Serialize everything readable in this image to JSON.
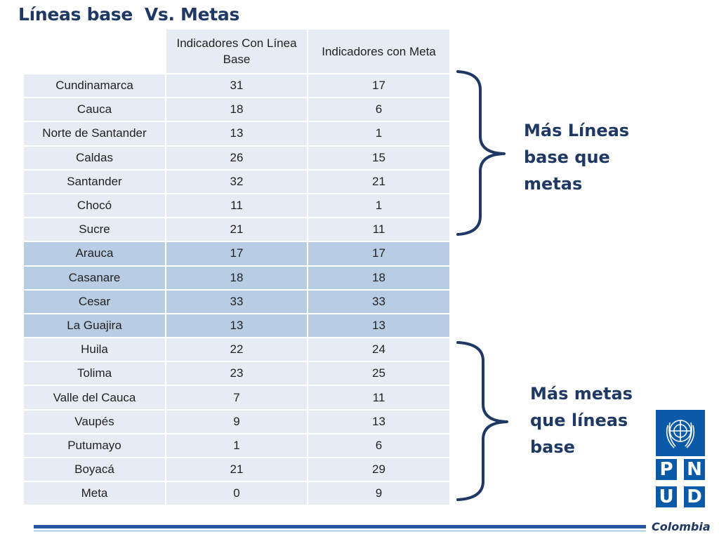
{
  "title": "Líneas base  Vs. Metas",
  "table": {
    "headers": [
      "",
      "Indicadores Con Línea Base",
      "Indicadores con Meta"
    ],
    "rows": [
      {
        "name": "Cundinamarca",
        "base": "31",
        "meta": "17",
        "group": "more_base"
      },
      {
        "name": "Cauca",
        "base": "18",
        "meta": "6",
        "group": "more_base"
      },
      {
        "name": "Norte de Santander",
        "base": "13",
        "meta": "1",
        "group": "more_base"
      },
      {
        "name": "Caldas",
        "base": "26",
        "meta": "15",
        "group": "more_base"
      },
      {
        "name": "Santander",
        "base": "32",
        "meta": "21",
        "group": "more_base"
      },
      {
        "name": "Chocó",
        "base": "11",
        "meta": "1",
        "group": "more_base"
      },
      {
        "name": "Sucre",
        "base": "21",
        "meta": "11",
        "group": "more_base"
      },
      {
        "name": "Arauca",
        "base": "17",
        "meta": "17",
        "group": "equal"
      },
      {
        "name": "Casanare",
        "base": "18",
        "meta": "18",
        "group": "equal"
      },
      {
        "name": "Cesar",
        "base": "33",
        "meta": "33",
        "group": "equal"
      },
      {
        "name": "La Guajira",
        "base": "13",
        "meta": "13",
        "group": "equal"
      },
      {
        "name": "Huila",
        "base": "22",
        "meta": "24",
        "group": "more_meta"
      },
      {
        "name": "Tolima",
        "base": "23",
        "meta": "25",
        "group": "more_meta"
      },
      {
        "name": "Valle del Cauca",
        "base": "7",
        "meta": "11",
        "group": "more_meta"
      },
      {
        "name": "Vaupés",
        "base": "9",
        "meta": "13",
        "group": "more_meta"
      },
      {
        "name": "Putumayo",
        "base": "1",
        "meta": "6",
        "group": "more_meta"
      },
      {
        "name": "Boyacá",
        "base": "21",
        "meta": "29",
        "group": "more_meta"
      },
      {
        "name": "Meta",
        "base": "0",
        "meta": "9",
        "group": "more_meta"
      }
    ]
  },
  "annotations": {
    "more_base": [
      "Más Líneas",
      "base que",
      "metas"
    ],
    "more_meta": [
      "Más metas",
      "que líneas",
      "base"
    ]
  },
  "logo": {
    "letters": [
      "P",
      "N",
      "U",
      "D"
    ],
    "country": "Colombia"
  },
  "colors": {
    "title": "#1f3864",
    "row_default": "#e7ebf3",
    "row_equal": "#b8cce4",
    "brace": "#1f3864",
    "logo_blue": "#0a5aa8",
    "footer_line": "#2456a4"
  }
}
